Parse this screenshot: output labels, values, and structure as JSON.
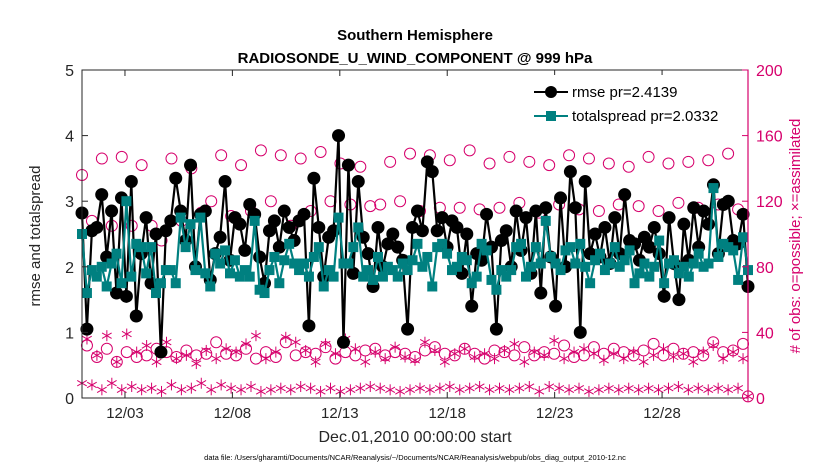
{
  "chart_data": {
    "type": "line",
    "title": "Southern Hemisphere",
    "subtitle": "RADIOSONDE_U_WIND_COMPONENT @ 999 hPa",
    "xlabel": "Dec.01,2010 00:00:00 start",
    "ylabel": "rmse and totalspread",
    "ylabel_right": "# of obs: o=possible; ×=assimilated",
    "footnote": "data file: /Users/gharamti/Documents/NCAR/Reanalysis/~/Documents/NCAR/Reanalysis/webpub/obs_diag_output_2010-12.nc",
    "xlim": [
      1,
      32
    ],
    "ylim": [
      0,
      5
    ],
    "ylim_right": [
      0,
      200
    ],
    "xticks": [
      3,
      8,
      13,
      18,
      23,
      28
    ],
    "xtick_labels": [
      "12/03",
      "12/08",
      "12/13",
      "12/18",
      "12/23",
      "12/28"
    ],
    "yticks": [
      0,
      1,
      2,
      3,
      4,
      5
    ],
    "ytick_labels": [
      "0",
      "1",
      "2",
      "3",
      "4",
      "5"
    ],
    "yticks_right": [
      0,
      40,
      80,
      120,
      160,
      200
    ],
    "ytick_labels_right": [
      "0",
      "40",
      "80",
      "120",
      "160",
      "200"
    ],
    "series": [
      {
        "name": "rmse",
        "legend": "rmse pr=2.4139",
        "color": "#000000",
        "marker": "circle",
        "axis": "left",
        "values": [
          2.82,
          1.05,
          2.55,
          2.6,
          3.1,
          2.15,
          2.85,
          1.6,
          3.05,
          1.55,
          3.3,
          1.25,
          2.2,
          2.75,
          1.75,
          2.5,
          0.7,
          2.55,
          2.7,
          3.35,
          2.85,
          2.4,
          3.55,
          2.0,
          2.8,
          2.85,
          1.8,
          2.2,
          2.45,
          3.3,
          2.1,
          2.75,
          2.65,
          2.25,
          2.95,
          2.8,
          2.15,
          1.75,
          2.55,
          2.7,
          2.3,
          2.85,
          2.6,
          2.4,
          2.7,
          2.8,
          1.1,
          3.35,
          2.6,
          1.85,
          2.45,
          2.55,
          4.0,
          0.85,
          3.55,
          1.9,
          3.3,
          2.45,
          2.2,
          1.7,
          2.6,
          2.0,
          2.35,
          2.5,
          2.3,
          2.1,
          1.05,
          2.6,
          2.85,
          2.55,
          3.6,
          3.45,
          2.55,
          2.75,
          2.3,
          2.7,
          2.6,
          1.9,
          2.5,
          1.4,
          2.2,
          2.1,
          2.8,
          2.3,
          1.05,
          2.4,
          2.55,
          2.0,
          2.85,
          2.25,
          2.75,
          1.9,
          2.85,
          1.6,
          2.9,
          2.15,
          1.4,
          3.05,
          2.0,
          3.45,
          2.9,
          1.0,
          3.3,
          2.2,
          2.5,
          2.15,
          2.6,
          2.05,
          2.75,
          2.2,
          3.1,
          2.4,
          2.35,
          2.1,
          2.45,
          2.3,
          2.6,
          2.2,
          1.55,
          2.75,
          2.05,
          1.5,
          2.65,
          2.1,
          2.9,
          2.3,
          2.85,
          2.65,
          3.25,
          2.2,
          2.95,
          3.0,
          2.4,
          2.35,
          2.8,
          1.7
        ]
      },
      {
        "name": "totalspread",
        "legend": "totalspread pr=2.0332",
        "color": "#008080",
        "marker": "square",
        "axis": "left",
        "values": [
          2.5,
          1.6,
          1.95,
          1.85,
          2.0,
          1.7,
          2.05,
          2.2,
          1.75,
          3.0,
          1.85,
          2.35,
          2.3,
          1.9,
          2.3,
          1.6,
          1.75,
          1.95,
          1.95,
          1.75,
          2.75,
          2.3,
          2.65,
          1.95,
          2.75,
          1.9,
          1.7,
          2.2,
          2.05,
          2.25,
          1.9,
          2.1,
          1.85,
          1.95,
          1.85,
          2.7,
          1.65,
          1.6,
          1.95,
          2.15,
          1.75,
          2.1,
          2.35,
          2.05,
          1.95,
          2.05,
          1.85,
          2.15,
          2.3,
          1.7,
          1.95,
          1.85,
          2.75,
          2.05,
          2.05,
          2.3,
          2.6,
          1.85,
          1.95,
          1.8,
          2.15,
          1.85,
          2.0,
          1.95,
          1.85,
          2.05,
          1.95,
          2.1,
          2.35,
          2.0,
          2.15,
          1.7,
          2.3,
          2.35,
          2.2,
          1.95,
          2.0,
          2.15,
          2.1,
          1.75,
          1.85,
          2.35,
          2.25,
          1.8,
          1.65,
          1.95,
          1.85,
          1.95,
          2.3,
          2.35,
          1.85,
          2.0,
          2.3,
          2.05,
          2.7,
          2.15,
          2.05,
          1.95,
          2.25,
          2.3,
          2.05,
          2.35,
          2.0,
          1.75,
          2.1,
          2.2,
          1.95,
          2.05,
          2.3,
          2.0,
          2.1,
          2.25,
          1.75,
          1.9,
          2.05,
          1.85,
          2.0,
          2.4,
          1.75,
          2.05,
          2.1,
          1.9,
          2.0,
          1.85,
          2.05,
          2.2,
          2.0,
          2.05,
          3.2,
          2.15,
          2.35,
          2.3,
          2.25,
          1.8,
          2.45,
          1.95
        ]
      },
      {
        "name": "possible",
        "marker": "open-circle",
        "color": "#d6006c",
        "axis": "right",
        "values": [
          136,
          32,
          108,
          25,
          146,
          30,
          105,
          22,
          147,
          28,
          105,
          25,
          142,
          26,
          105,
          30,
          96,
          28,
          146,
          25,
          108,
          29,
          140,
          26,
          113,
          27,
          120,
          34,
          148,
          27,
          111,
          26,
          142,
          30,
          114,
          24,
          151,
          28,
          120,
          25,
          148,
          34,
          105,
          26,
          146,
          28,
          114,
          27,
          150,
          31,
          120,
          24,
          143,
          28,
          118,
          26,
          141,
          29,
          117,
          30,
          118,
          26,
          144,
          28,
          120,
          27,
          149,
          25,
          114,
          29,
          148,
          31,
          116,
          27,
          145,
          26,
          116,
          30,
          151,
          27,
          115,
          24,
          143,
          29,
          116,
          28,
          147,
          26,
          119,
          31,
          144,
          26,
          113,
          28,
          142,
          27,
          118,
          32,
          148,
          25,
          115,
          26,
          146,
          31,
          114,
          27,
          143,
          30,
          118,
          28,
          141,
          26,
          117,
          29,
          147,
          33,
          114,
          26,
          143,
          30,
          119,
          27,
          144,
          28,
          116,
          26,
          145,
          34,
          118,
          28,
          149,
          29,
          115,
          33,
          1
        ]
      },
      {
        "name": "assimilated",
        "marker": "asterisk",
        "color": "#d6006c",
        "axis": "right",
        "values": [
          9,
          36,
          8,
          26,
          5,
          38,
          9,
          22,
          5,
          39,
          7,
          28,
          5,
          32,
          6,
          22,
          4,
          34,
          8,
          24,
          5,
          26,
          6,
          21,
          9,
          29,
          5,
          24,
          8,
          30,
          6,
          28,
          5,
          33,
          7,
          38,
          4,
          24,
          5,
          28,
          6,
          37,
          5,
          34,
          7,
          29,
          6,
          22,
          4,
          33,
          6,
          27,
          4,
          36,
          5,
          30,
          6,
          22,
          7,
          28,
          6,
          24,
          5,
          31,
          4,
          25,
          5,
          23,
          6,
          34,
          5,
          29,
          6,
          22,
          7,
          27,
          5,
          30,
          6,
          25,
          7,
          27,
          5,
          24,
          6,
          29,
          5,
          33,
          6,
          22,
          7,
          28,
          4,
          26,
          7,
          35,
          6,
          24,
          5,
          28,
          6,
          30,
          4,
          27,
          5,
          23,
          6,
          27,
          5,
          24,
          6,
          28,
          5,
          22,
          6,
          26,
          5,
          30,
          6,
          25,
          7,
          27,
          5,
          22,
          6,
          28,
          5,
          32,
          6,
          24,
          5,
          28,
          6,
          24,
          1
        ]
      }
    ]
  }
}
